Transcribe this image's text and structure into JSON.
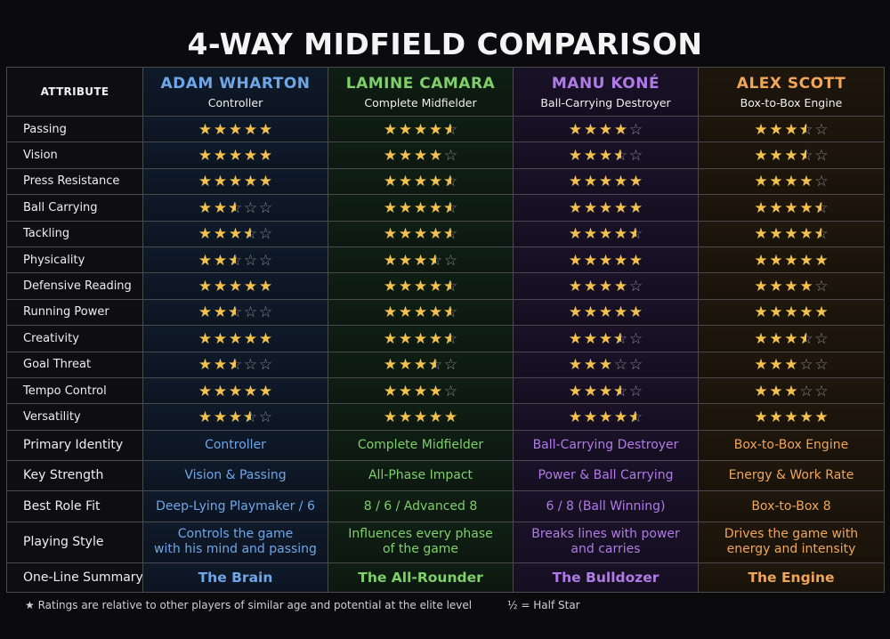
{
  "title": "4-WAY MIDFIELD COMPARISON",
  "header_label": "ATTRIBUTE",
  "players": [
    {
      "name": "ADAM WHARTON",
      "role": "Controller",
      "color": "#6fa6e8"
    },
    {
      "name": "LAMINE CAMARA",
      "role": "Complete Midfielder",
      "color": "#7fcf6a"
    },
    {
      "name": "MANU KONÉ",
      "role": "Ball-Carrying Destroyer",
      "color": "#b07be6"
    },
    {
      "name": "ALEX SCOTT",
      "role": "Box-to-Box Engine",
      "color": "#f0a65a"
    }
  ],
  "ratings": [
    {
      "attribute": "Passing",
      "values": [
        5,
        4.5,
        4,
        3.5
      ]
    },
    {
      "attribute": "Vision",
      "values": [
        5,
        4,
        3.5,
        3.5
      ]
    },
    {
      "attribute": "Press Resistance",
      "values": [
        5,
        4.5,
        5,
        4
      ]
    },
    {
      "attribute": "Ball Carrying",
      "values": [
        2.5,
        4.5,
        5,
        4.5
      ]
    },
    {
      "attribute": "Tackling",
      "values": [
        3.5,
        4.5,
        4.5,
        4.5
      ]
    },
    {
      "attribute": "Physicality",
      "values": [
        2.5,
        3.5,
        5,
        5
      ]
    },
    {
      "attribute": "Defensive Reading",
      "values": [
        5,
        4.5,
        4,
        4
      ]
    },
    {
      "attribute": "Running Power",
      "values": [
        2.5,
        4.5,
        5,
        5
      ]
    },
    {
      "attribute": "Creativity",
      "values": [
        5,
        4.5,
        3.5,
        3.5
      ]
    },
    {
      "attribute": "Goal Threat",
      "values": [
        2.5,
        3.5,
        3,
        3
      ]
    },
    {
      "attribute": "Tempo Control",
      "values": [
        5,
        4,
        3.5,
        3
      ]
    },
    {
      "attribute": "Versatility",
      "values": [
        3.5,
        5,
        4.5,
        5
      ]
    }
  ],
  "info_rows": [
    {
      "label": "Primary Identity",
      "values": [
        "Controller",
        "Complete Midfielder",
        "Ball-Carrying Destroyer",
        "Box-to-Box Engine"
      ]
    },
    {
      "label": "Key Strength",
      "values": [
        "Vision & Passing",
        "All-Phase Impact",
        "Power & Ball Carrying",
        "Energy & Work Rate"
      ]
    },
    {
      "label": "Best Role Fit",
      "values": [
        "Deep-Lying Playmaker / 6",
        "8 / 6 / Advanced 8",
        "6 / 8 (Ball Winning)",
        "Box-to-Box 8"
      ]
    },
    {
      "label": "Playing Style",
      "values": [
        [
          "Controls the game",
          "with his mind and passing"
        ],
        [
          "Influences every phase",
          "of the game"
        ],
        [
          "Breaks lines with power",
          "and carries"
        ],
        [
          "Drives the game with",
          "energy and intensity"
        ]
      ]
    },
    {
      "label": "One-Line Summary",
      "values": [
        "The Brain",
        "The All-Rounder",
        "The Bulldozer",
        "The Engine"
      ]
    }
  ],
  "footer": {
    "note": "★  Ratings are relative to other players of similar age and potential at the elite level",
    "half_star": "½ = Half Star"
  },
  "icons": {
    "star": "star-icon",
    "half_star": "half-star-icon",
    "empty_star": "empty-star-icon"
  }
}
